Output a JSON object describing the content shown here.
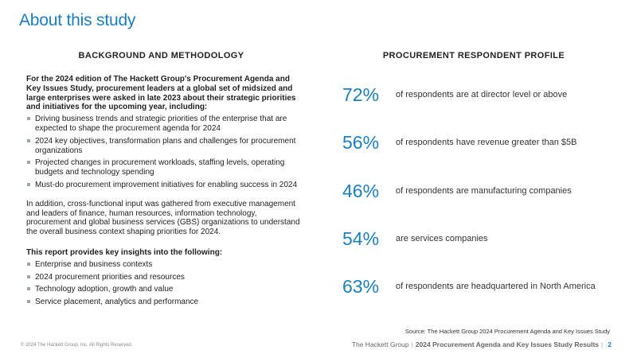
{
  "title": "About this study",
  "left": {
    "heading": "BACKGROUND AND METHODOLOGY",
    "intro": "For the 2024 edition of The Hackett Group's Procurement Agenda and Key Issues Study, procurement leaders at a global set of midsized and large enterprises were asked in late 2023 about their strategic priorities and initiatives for the upcoming year, including:",
    "bullets": [
      "Driving business trends and strategic priorities of the enterprise that are expected to shape the procurement agenda for 2024",
      "2024 key objectives, transformation plans and challenges for procurement organizations",
      "Projected changes in procurement workloads, staffing levels, operating budgets and technology spending",
      "Must-do procurement improvement initiatives for enabling success in 2024"
    ],
    "paragraph": "In addition, cross-functional input was gathered from executive management and leaders of finance, human resources, information technology, procurement and global business services (GBS) organizations to understand the overall business context shaping priorities for 2024.",
    "insights_heading": "This report provides key insights into the following:",
    "insights": [
      "Enterprise and business contexts",
      "2024 procurement priorities and resources",
      "Technology adoption, growth and value",
      "Service placement, analytics and performance"
    ]
  },
  "right": {
    "heading": "PROCUREMENT RESPONDENT PROFILE",
    "stats": [
      {
        "value": "72%",
        "text": "of respondents are at director level or above"
      },
      {
        "value": "56%",
        "text": "of respondents have revenue greater than $5B"
      },
      {
        "value": "46%",
        "text": "of respondents are manufacturing companies"
      },
      {
        "value": "54%",
        "text": "are services companies"
      },
      {
        "value": "63%",
        "text": "of respondents are headquartered in North America"
      }
    ]
  },
  "source": "Source: The Hackett Group 2024 Procurement Agenda and Key Issues Study",
  "footer": {
    "copyright": "© 2024 The Hackett Group, Inc. All Rights Reserved.",
    "brand": "The Hackett Group",
    "separator": "|",
    "report": "2024 Procurement Agenda and Key Issues Study Results",
    "page_separator": "|",
    "page": "2"
  },
  "colors": {
    "accent": "#1a7fc0",
    "bullet": "#9aa7b0"
  }
}
